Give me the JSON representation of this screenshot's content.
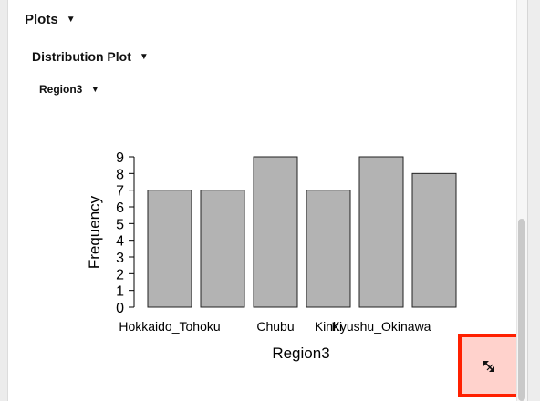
{
  "sections": {
    "plots": "Plots",
    "distribution_plot": "Distribution Plot",
    "variable": "Region3"
  },
  "icons": {
    "collapse": "triangle-down-icon",
    "resize": "resize-diagonal-arrows-icon"
  },
  "colors": {
    "bar_fill": "#b3b3b3",
    "highlight_border": "#ff2000",
    "highlight_fill": "#ffd2cc"
  },
  "chart_data": {
    "type": "bar",
    "xlabel": "Region3",
    "ylabel": "Frequency",
    "categories": [
      "Hokkaido_Tohoku",
      "",
      "Chubu",
      "Kinki",
      "Kyushu_Okinawa",
      ""
    ],
    "values": [
      7,
      7,
      9,
      7,
      9,
      8
    ],
    "ylim": [
      0,
      9
    ],
    "yticks": [
      "0",
      "1",
      "2",
      "3",
      "4",
      "5",
      "6",
      "7",
      "8",
      "9"
    ],
    "grid": false,
    "legend": "none"
  }
}
